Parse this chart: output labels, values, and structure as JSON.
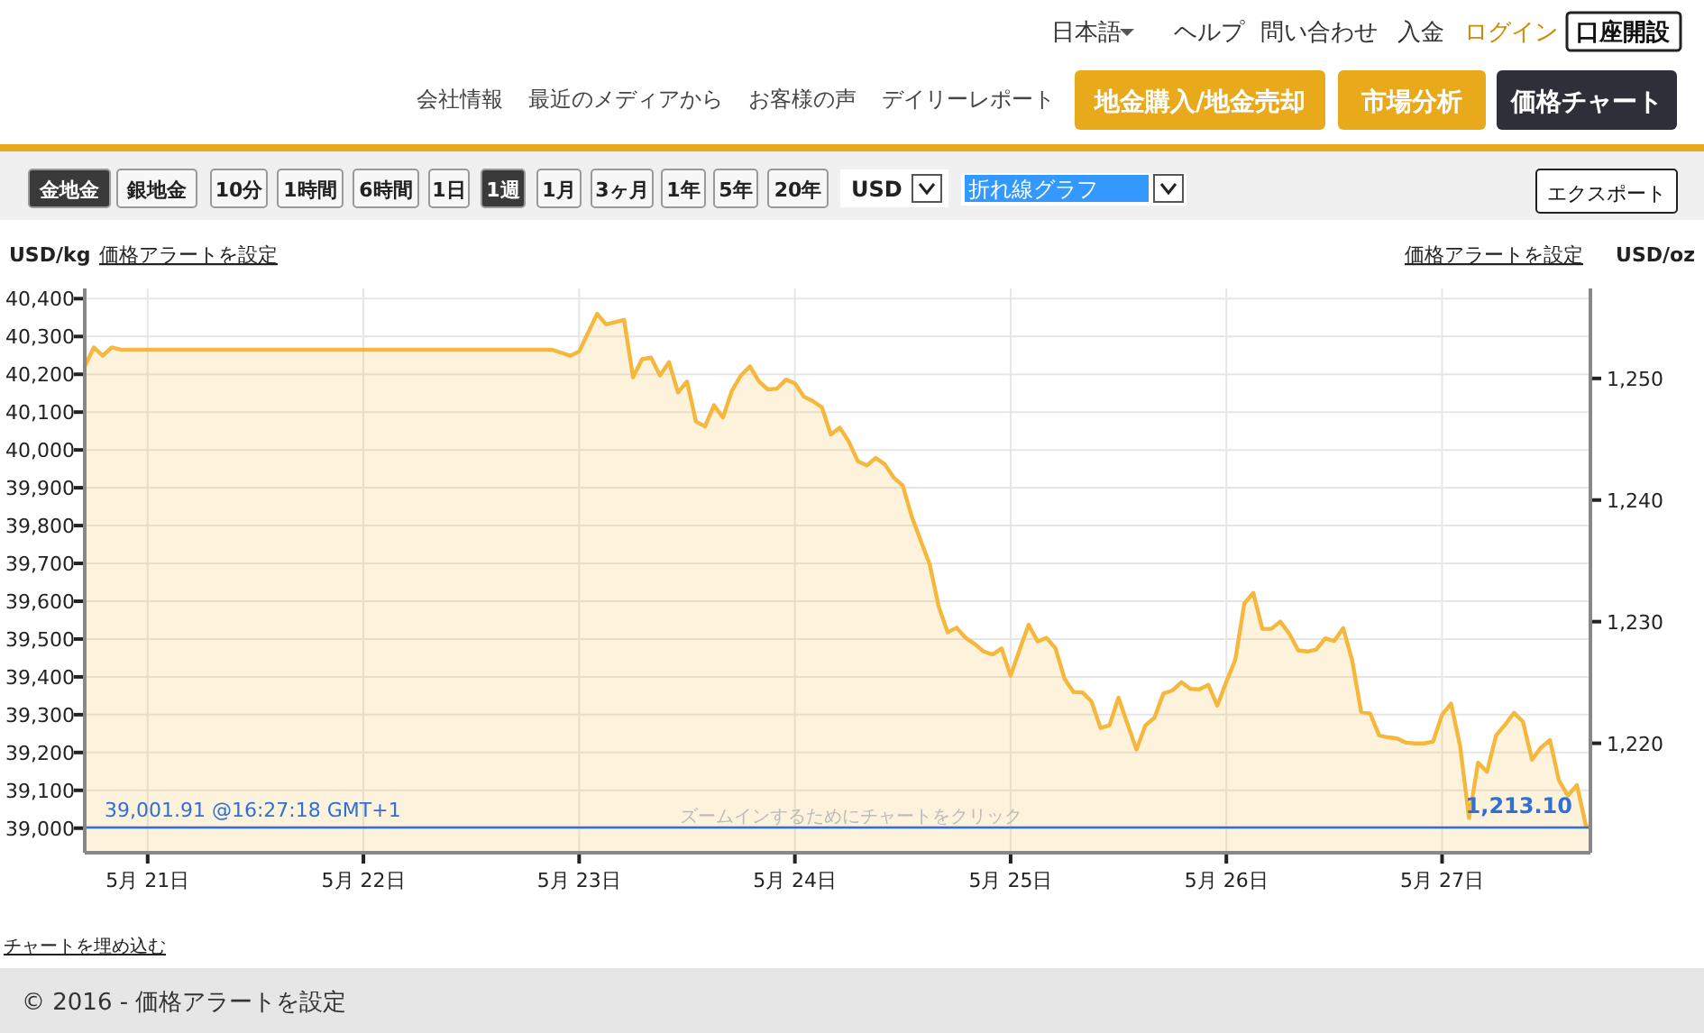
{
  "chart_data": {
    "type": "area",
    "ylabel": "USD/kg",
    "y2label": "USD/oz",
    "x": [
      "2016-05-20T17:00",
      "2016-05-20T18:00",
      "2016-05-20T19:00",
      "2016-05-20T20:00",
      "2016-05-20T21:00",
      "2016-05-22T21:00",
      "2016-05-22T23:00",
      "2016-05-23T00:00",
      "2016-05-23T02:00",
      "2016-05-23T03:00",
      "2016-05-23T05:00",
      "2016-05-23T06:00",
      "2016-05-23T07:00",
      "2016-05-23T08:00",
      "2016-05-23T09:00",
      "2016-05-23T10:00",
      "2016-05-23T11:00",
      "2016-05-23T12:00",
      "2016-05-23T13:00",
      "2016-05-23T14:00",
      "2016-05-23T15:00",
      "2016-05-23T16:00",
      "2016-05-23T17:00",
      "2016-05-23T18:00",
      "2016-05-23T19:00",
      "2016-05-23T20:00",
      "2016-05-23T21:00",
      "2016-05-23T22:00",
      "2016-05-23T23:00",
      "2016-05-24T00:00",
      "2016-05-24T01:00",
      "2016-05-24T02:00",
      "2016-05-24T03:00",
      "2016-05-24T04:00",
      "2016-05-24T05:00",
      "2016-05-24T06:00",
      "2016-05-24T07:00",
      "2016-05-24T08:00",
      "2016-05-24T09:00",
      "2016-05-24T10:00",
      "2016-05-24T11:00",
      "2016-05-24T12:00",
      "2016-05-24T13:00",
      "2016-05-24T14:00",
      "2016-05-24T15:00",
      "2016-05-24T16:00",
      "2016-05-24T17:00",
      "2016-05-24T18:00",
      "2016-05-24T19:00",
      "2016-05-24T20:00",
      "2016-05-24T21:00",
      "2016-05-24T22:00",
      "2016-05-24T23:00",
      "2016-05-25T00:00",
      "2016-05-25T01:00",
      "2016-05-25T02:00",
      "2016-05-25T03:00",
      "2016-05-25T04:00",
      "2016-05-25T05:00",
      "2016-05-25T06:00",
      "2016-05-25T07:00",
      "2016-05-25T08:00",
      "2016-05-25T09:00",
      "2016-05-25T10:00",
      "2016-05-25T11:00",
      "2016-05-25T12:00",
      "2016-05-25T13:00",
      "2016-05-25T14:00",
      "2016-05-25T15:00",
      "2016-05-25T16:00",
      "2016-05-25T17:00",
      "2016-05-25T18:00",
      "2016-05-25T19:00",
      "2016-05-25T20:00",
      "2016-05-25T21:00",
      "2016-05-25T22:00",
      "2016-05-25T23:00",
      "2016-05-26T00:00",
      "2016-05-26T01:00",
      "2016-05-26T02:00",
      "2016-05-26T03:00",
      "2016-05-26T04:00",
      "2016-05-26T05:00",
      "2016-05-26T06:00",
      "2016-05-26T07:00",
      "2016-05-26T08:00",
      "2016-05-26T09:00",
      "2016-05-26T10:00",
      "2016-05-26T11:00",
      "2016-05-26T12:00",
      "2016-05-26T13:00",
      "2016-05-26T14:00",
      "2016-05-26T15:00",
      "2016-05-26T16:00",
      "2016-05-26T17:00",
      "2016-05-26T18:00",
      "2016-05-26T19:00",
      "2016-05-26T20:00",
      "2016-05-26T21:00",
      "2016-05-26T22:00",
      "2016-05-26T23:00",
      "2016-05-27T00:00",
      "2016-05-27T01:00",
      "2016-05-27T02:00",
      "2016-05-27T03:00",
      "2016-05-27T04:00",
      "2016-05-27T05:00",
      "2016-05-27T06:00",
      "2016-05-27T07:00",
      "2016-05-27T08:00",
      "2016-05-27T09:00",
      "2016-05-27T10:00",
      "2016-05-27T11:00",
      "2016-05-27T12:00",
      "2016-05-27T13:00",
      "2016-05-27T14:00",
      "2016-05-27T15:00",
      "2016-05-27T16:00",
      "2016-05-27T16:27"
    ],
    "series": [
      {
        "color": "#f5b83d",
        "values": [
          40221,
          40271,
          40249,
          40271,
          40265,
          40265,
          40249,
          40260,
          40360,
          40332,
          40344,
          40192,
          40240,
          40244,
          40197,
          40232,
          40152,
          40181,
          40075,
          40062,
          40118,
          40086,
          40157,
          40197,
          40221,
          40181,
          40160,
          40162,
          40186,
          40176,
          40141,
          40129,
          40113,
          40041,
          40059,
          40022,
          39970,
          39959,
          39979,
          39962,
          39927,
          39906,
          39824,
          39760,
          39697,
          39586,
          39518,
          39530,
          39503,
          39487,
          39467,
          39459,
          39475,
          39403,
          39472,
          39538,
          39494,
          39503,
          39475,
          39395,
          39360,
          39359,
          39335,
          39265,
          39272,
          39345,
          39276,
          39208,
          39272,
          39292,
          39356,
          39364,
          39386,
          39368,
          39367,
          39379,
          39324,
          39387,
          39446,
          39594,
          39622,
          39527,
          39527,
          39546,
          39514,
          39470,
          39467,
          39472,
          39502,
          39495,
          39529,
          39443,
          39307,
          39303,
          39245,
          39240,
          39237,
          39226,
          39224,
          39224,
          39229,
          39300,
          39329,
          39218,
          39027,
          39173,
          39149,
          39245,
          39273,
          39305,
          39281,
          39181,
          39213,
          39233,
          39126,
          39086,
          39114,
          39007,
          39002
        ]
      }
    ],
    "xlim": [
      "2016-05-20T17:00",
      "2016-05-27T16:30"
    ],
    "xticks": [
      {
        "value": "2016-05-21",
        "label": "5月 21日"
      },
      {
        "value": "2016-05-22",
        "label": "5月 22日"
      },
      {
        "value": "2016-05-23",
        "label": "5月 23日"
      },
      {
        "value": "2016-05-24",
        "label": "5月 24日"
      },
      {
        "value": "2016-05-25",
        "label": "5月 25日"
      },
      {
        "value": "2016-05-26",
        "label": "5月 26日"
      },
      {
        "value": "2016-05-27",
        "label": "5月 27日"
      }
    ],
    "ylim": [
      38935,
      40427
    ],
    "yticks": [
      {
        "value": 39000,
        "label": "39,000"
      },
      {
        "value": 39100,
        "label": "39,100"
      },
      {
        "value": 39200,
        "label": "39,200"
      },
      {
        "value": 39300,
        "label": "39,300"
      },
      {
        "value": 39400,
        "label": "39,400"
      },
      {
        "value": 39500,
        "label": "39,500"
      },
      {
        "value": 39600,
        "label": "39,600"
      },
      {
        "value": 39700,
        "label": "39,700"
      },
      {
        "value": 39800,
        "label": "39,800"
      },
      {
        "value": 39900,
        "label": "39,900"
      },
      {
        "value": 40000,
        "label": "40,000"
      },
      {
        "value": 40100,
        "label": "40,100"
      },
      {
        "value": 40200,
        "label": "40,200"
      },
      {
        "value": 40300,
        "label": "40,300"
      },
      {
        "value": 40400,
        "label": "40,400"
      }
    ],
    "y2lim": [
      1211.0,
      1257.4
    ],
    "y2ticks": [
      {
        "value": 1220,
        "label": "1,220"
      },
      {
        "value": 1230,
        "label": "1,230"
      },
      {
        "value": 1240,
        "label": "1,240"
      },
      {
        "value": 1250,
        "label": "1,250"
      }
    ],
    "grid": true,
    "ref_lines": [
      {
        "axis": "y",
        "value": 39001.91,
        "label": "39,001.91 @16:27:18 GMT+1",
        "color": "#2f6fd6"
      }
    ],
    "annotations": [
      "日本語",
      "ヘルプ",
      "問い合わせ",
      "入金",
      "ログイン",
      "口座開設",
      "会社情報",
      "最近のメディアから",
      "お客様の声",
      "デイリーレポート",
      "地金購入/地金売却",
      "市場分析",
      "価格チャート",
      "金地金",
      "銀地金",
      "10分",
      "1時間",
      "6時間",
      "1日",
      "1週",
      "1月",
      "3ヶ月",
      "1年",
      "5年",
      "20年",
      "USD",
      "折れ線グラフ",
      "エクスポート",
      "価格アラートを設定",
      "価格アラートを設定",
      "ズームインするためにチャートをクリック",
      "チャートを埋め込む",
      "© 2016 - 価格アラートを設定",
      "1,213.10"
    ]
  }
}
